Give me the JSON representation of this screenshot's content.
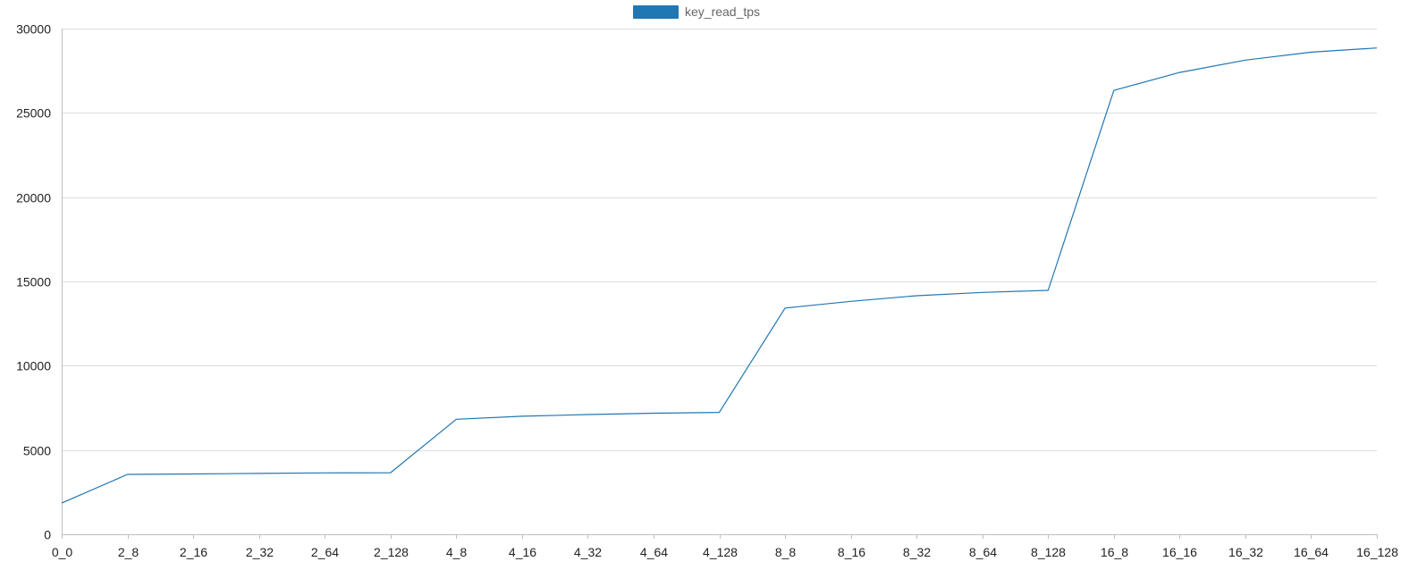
{
  "chart_data": {
    "type": "line",
    "categories": [
      "0_0",
      "2_8",
      "2_16",
      "2_32",
      "2_64",
      "2_128",
      "4_8",
      "4_16",
      "4_32",
      "4_64",
      "4_128",
      "8_8",
      "8_16",
      "8_32",
      "8_64",
      "8_128",
      "16_8",
      "16_16",
      "16_32",
      "16_64",
      "16_128"
    ],
    "series": [
      {
        "name": "key_read_tps",
        "color": "#1f77b4",
        "values": [
          1850,
          3550,
          3580,
          3610,
          3640,
          3650,
          6820,
          7000,
          7100,
          7180,
          7230,
          13420,
          13820,
          14150,
          14350,
          14470,
          26330,
          27400,
          28130,
          28600,
          28850
        ]
      }
    ],
    "y_ticks": [
      0,
      5000,
      10000,
      15000,
      20000,
      25000,
      30000
    ],
    "ylim": [
      0,
      30000
    ],
    "grid": true,
    "legend_position": "top-center"
  }
}
